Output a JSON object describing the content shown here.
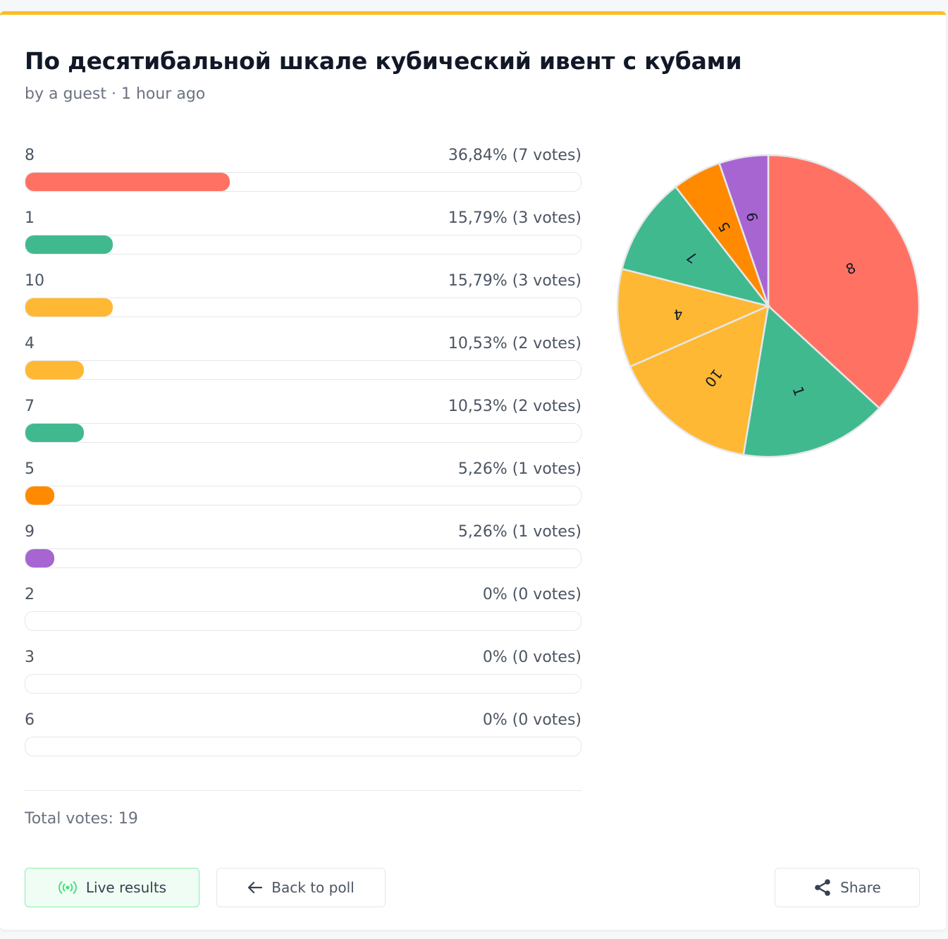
{
  "poll": {
    "title": "По десятибальной шкале кубический ивент с кубами",
    "meta": "by a guest · 1 hour ago",
    "total": "Total votes: 19"
  },
  "options": [
    {
      "label": "8",
      "stat": "36,84% (7 votes)",
      "votes": 7,
      "color": "#ff7263"
    },
    {
      "label": "1",
      "stat": "15,79% (3 votes)",
      "votes": 3,
      "color": "#40b98f"
    },
    {
      "label": "10",
      "stat": "15,79% (3 votes)",
      "votes": 3,
      "color": "#ffb833"
    },
    {
      "label": "4",
      "stat": "10,53% (2 votes)",
      "votes": 2,
      "color": "#ffb833"
    },
    {
      "label": "7",
      "stat": "10,53% (2 votes)",
      "votes": 2,
      "color": "#40b98f"
    },
    {
      "label": "5",
      "stat": "5,26% (1 votes)",
      "votes": 1,
      "color": "#ff8a00"
    },
    {
      "label": "9",
      "stat": "5,26% (1 votes)",
      "votes": 1,
      "color": "#a765d1"
    },
    {
      "label": "2",
      "stat": "0% (0 votes)",
      "votes": 0,
      "color": "#e5e7eb"
    },
    {
      "label": "3",
      "stat": "0% (0 votes)",
      "votes": 0,
      "color": "#e5e7eb"
    },
    {
      "label": "6",
      "stat": "0% (0 votes)",
      "votes": 0,
      "color": "#e5e7eb"
    }
  ],
  "chart_data": {
    "type": "pie",
    "categories": [
      "8",
      "1",
      "10",
      "4",
      "7",
      "5",
      "9"
    ],
    "values": [
      7,
      3,
      3,
      2,
      2,
      1,
      1
    ],
    "colors": [
      "#ff7263",
      "#40b98f",
      "#ffb833",
      "#ffb833",
      "#40b98f",
      "#ff8a00",
      "#a765d1"
    ]
  },
  "buttons": {
    "live": "Live results",
    "back": "Back to poll",
    "share": "Share"
  },
  "icons": {
    "live": "broadcast-icon",
    "back": "arrow-left-icon",
    "share": "share-icon"
  }
}
